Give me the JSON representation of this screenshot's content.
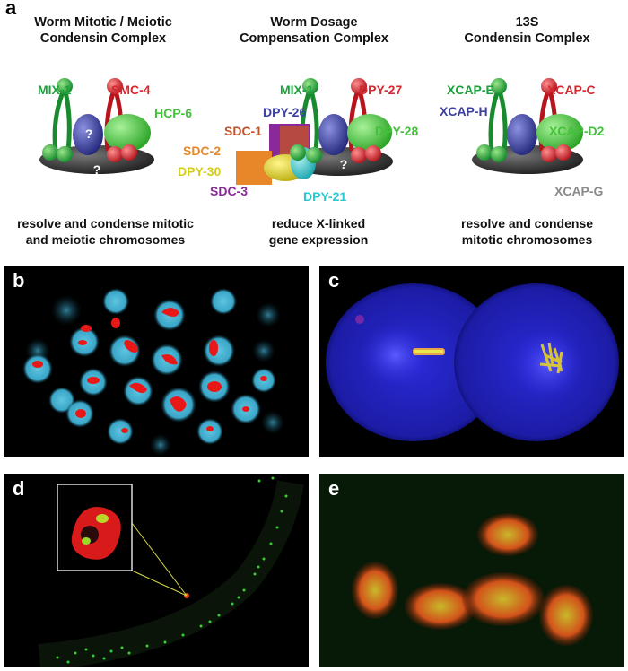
{
  "panel_a": {
    "letter": "a",
    "complexes": [
      {
        "title_line1": "Worm Mitotic / Meiotic",
        "title_line2": "Condensin Complex",
        "caption_line1": "resolve and condense mitotic",
        "caption_line2": "and meiotic chromosomes",
        "labels": {
          "l1": "MIX-1",
          "l2": "SMC-4",
          "l3": "HCP-6"
        },
        "marks": [
          "?",
          "?"
        ]
      },
      {
        "title_line1": "Worm Dosage",
        "title_line2": "Compensation Complex",
        "caption_line1": "reduce X-linked",
        "caption_line2": "gene expression",
        "labels": {
          "mix1": "MIX-1",
          "dpy27": "DPY-27",
          "dpy26": "DPY-26",
          "sdc1": "SDC-1",
          "dpy28": "DPY-28",
          "sdc2": "SDC-2",
          "dpy30": "DPY-30",
          "sdc3": "SDC-3",
          "dpy21": "DPY-21"
        },
        "marks": [
          "?"
        ]
      },
      {
        "title_line1": "13S",
        "title_line2": "Condensin Complex",
        "caption_line1": "resolve and condense",
        "caption_line2": "mitotic chromosomes",
        "labels": {
          "xcape": "XCAP-E",
          "xcapc": "XCAP-C",
          "xcaph": "XCAP-H",
          "xcapd2": "XCAP-D2",
          "xcapg": "XCAP-G"
        }
      }
    ],
    "colors": {
      "green": "#1aa33a",
      "red": "#d7262d",
      "blue": "#3b3f9e",
      "lime": "#43c13a",
      "gray": "#8a8a8a",
      "orange": "#e8862a",
      "yellow": "#d6cc1a",
      "purple": "#8a2a9a",
      "cyan": "#26c9cf",
      "brown": "#c0522a"
    }
  },
  "panel_b": {
    "letter": "b"
  },
  "panel_c": {
    "letter": "c"
  },
  "panel_d": {
    "letter": "d"
  },
  "panel_e": {
    "letter": "e"
  }
}
